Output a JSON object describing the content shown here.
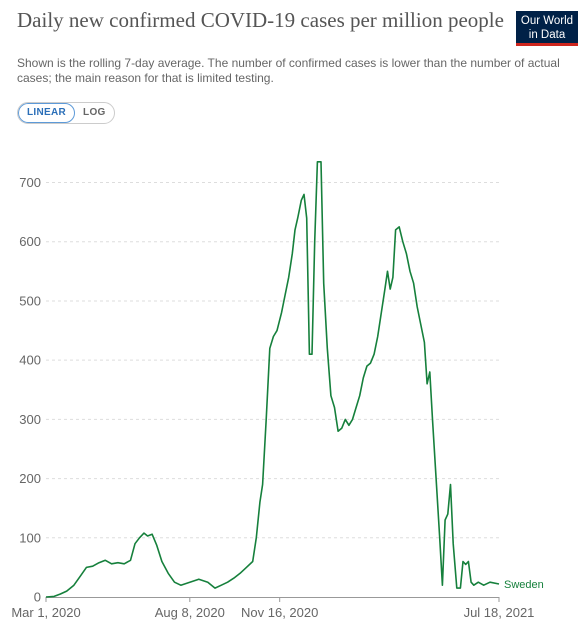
{
  "header": {
    "title": "Daily new confirmed COVID-19 cases per million people",
    "subtitle": "Shown is the rolling 7-day average. The number of confirmed cases is lower than the number of actual cases; the main reason for that is limited testing.",
    "logo_line1": "Our World",
    "logo_line2": "in Data"
  },
  "controls": {
    "linear_label": "LINEAR",
    "log_label": "LOG",
    "active": "linear"
  },
  "colors": {
    "series": "#16803c",
    "grid": "#dddddd",
    "logo_bg": "#002147",
    "logo_accent": "#ce261e"
  },
  "chart_data": {
    "type": "line",
    "title": "Daily new confirmed COVID-19 cases per million people",
    "xlabel": "",
    "ylabel": "",
    "y_ticks": [
      0,
      100,
      200,
      300,
      400,
      500,
      600,
      700
    ],
    "ylim": [
      0,
      760
    ],
    "x_ticks": [
      "Mar 1, 2020",
      "Aug 8, 2020",
      "Nov 16, 2020",
      "Jul 18, 2021"
    ],
    "xlim": [
      "2020-03-01",
      "2021-07-18"
    ],
    "grid": true,
    "series": [
      {
        "name": "Sweden",
        "points": [
          [
            "2020-03-01",
            0
          ],
          [
            "2020-03-10",
            1
          ],
          [
            "2020-03-17",
            5
          ],
          [
            "2020-03-24",
            10
          ],
          [
            "2020-04-01",
            20
          ],
          [
            "2020-04-08",
            35
          ],
          [
            "2020-04-15",
            50
          ],
          [
            "2020-04-22",
            52
          ],
          [
            "2020-04-29",
            58
          ],
          [
            "2020-05-06",
            62
          ],
          [
            "2020-05-13",
            56
          ],
          [
            "2020-05-20",
            58
          ],
          [
            "2020-05-27",
            56
          ],
          [
            "2020-06-03",
            62
          ],
          [
            "2020-06-08",
            90
          ],
          [
            "2020-06-13",
            100
          ],
          [
            "2020-06-18",
            108
          ],
          [
            "2020-06-22",
            103
          ],
          [
            "2020-06-27",
            106
          ],
          [
            "2020-07-02",
            88
          ],
          [
            "2020-07-08",
            60
          ],
          [
            "2020-07-15",
            40
          ],
          [
            "2020-07-22",
            25
          ],
          [
            "2020-07-29",
            20
          ],
          [
            "2020-08-08",
            25
          ],
          [
            "2020-08-18",
            30
          ],
          [
            "2020-08-28",
            25
          ],
          [
            "2020-09-05",
            15
          ],
          [
            "2020-09-12",
            20
          ],
          [
            "2020-09-19",
            25
          ],
          [
            "2020-09-26",
            32
          ],
          [
            "2020-10-03",
            40
          ],
          [
            "2020-10-10",
            50
          ],
          [
            "2020-10-17",
            60
          ],
          [
            "2020-10-21",
            100
          ],
          [
            "2020-10-25",
            160
          ],
          [
            "2020-10-28",
            190
          ],
          [
            "2020-11-01",
            300
          ],
          [
            "2020-11-05",
            420
          ],
          [
            "2020-11-09",
            440
          ],
          [
            "2020-11-13",
            450
          ],
          [
            "2020-11-18",
            480
          ],
          [
            "2020-11-22",
            510
          ],
          [
            "2020-11-26",
            540
          ],
          [
            "2020-11-30",
            580
          ],
          [
            "2020-12-03",
            620
          ],
          [
            "2020-12-06",
            640
          ],
          [
            "2020-12-10",
            670
          ],
          [
            "2020-12-13",
            680
          ],
          [
            "2020-12-16",
            640
          ],
          [
            "2020-12-19",
            410
          ],
          [
            "2020-12-22",
            410
          ],
          [
            "2020-12-25",
            600
          ],
          [
            "2020-12-28",
            735
          ],
          [
            "2021-01-01",
            735
          ],
          [
            "2021-01-04",
            530
          ],
          [
            "2021-01-08",
            420
          ],
          [
            "2021-01-12",
            340
          ],
          [
            "2021-01-16",
            320
          ],
          [
            "2021-01-20",
            280
          ],
          [
            "2021-01-24",
            285
          ],
          [
            "2021-01-28",
            300
          ],
          [
            "2021-02-01",
            290
          ],
          [
            "2021-02-05",
            300
          ],
          [
            "2021-02-09",
            320
          ],
          [
            "2021-02-13",
            340
          ],
          [
            "2021-02-17",
            370
          ],
          [
            "2021-02-21",
            390
          ],
          [
            "2021-02-25",
            395
          ],
          [
            "2021-03-01",
            410
          ],
          [
            "2021-03-05",
            440
          ],
          [
            "2021-03-09",
            480
          ],
          [
            "2021-03-13",
            520
          ],
          [
            "2021-03-16",
            550
          ],
          [
            "2021-03-19",
            520
          ],
          [
            "2021-03-22",
            540
          ],
          [
            "2021-03-25",
            620
          ],
          [
            "2021-03-29",
            625
          ],
          [
            "2021-04-02",
            600
          ],
          [
            "2021-04-06",
            580
          ],
          [
            "2021-04-10",
            550
          ],
          [
            "2021-04-14",
            530
          ],
          [
            "2021-04-18",
            490
          ],
          [
            "2021-04-22",
            460
          ],
          [
            "2021-04-26",
            430
          ],
          [
            "2021-04-29",
            360
          ],
          [
            "2021-05-02",
            380
          ],
          [
            "2021-05-05",
            300
          ],
          [
            "2021-05-09",
            200
          ],
          [
            "2021-05-13",
            100
          ],
          [
            "2021-05-16",
            20
          ],
          [
            "2021-05-19",
            130
          ],
          [
            "2021-05-22",
            140
          ],
          [
            "2021-05-25",
            190
          ],
          [
            "2021-05-28",
            90
          ],
          [
            "2021-06-01",
            15
          ],
          [
            "2021-06-05",
            15
          ],
          [
            "2021-06-08",
            60
          ],
          [
            "2021-06-11",
            55
          ],
          [
            "2021-06-14",
            60
          ],
          [
            "2021-06-17",
            25
          ],
          [
            "2021-06-20",
            20
          ],
          [
            "2021-06-25",
            25
          ],
          [
            "2021-07-01",
            20
          ],
          [
            "2021-07-08",
            25
          ],
          [
            "2021-07-18",
            22
          ]
        ]
      }
    ]
  }
}
